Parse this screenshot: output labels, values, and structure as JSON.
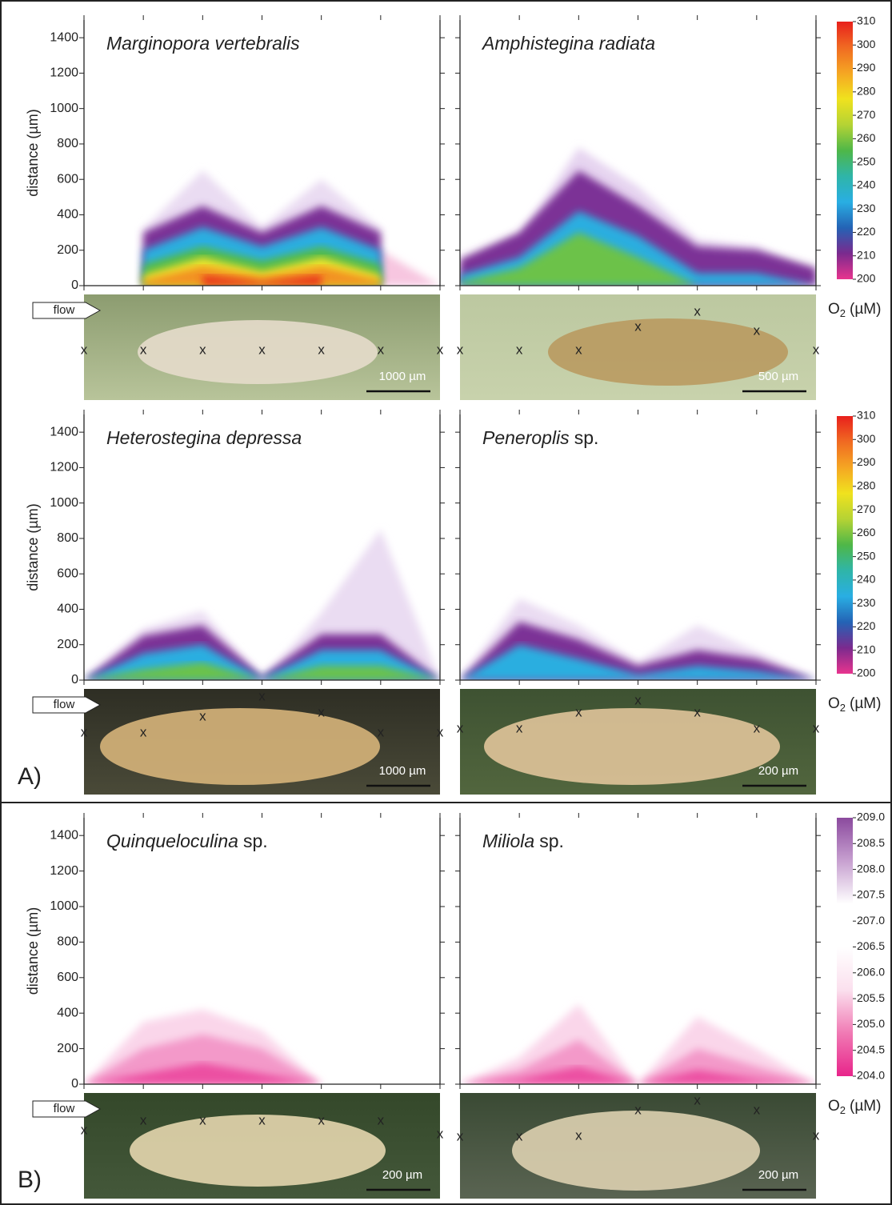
{
  "chart_data": [
    {
      "type": "contour",
      "title": [
        "Marginopora vertebralis"
      ],
      "ylabel": "distance (µm)",
      "ylim": [
        0,
        1500
      ],
      "yticks": [
        0,
        200,
        400,
        600,
        800,
        1000,
        1200,
        1400
      ],
      "tick_labels": true,
      "layers": [
        {
          "color": "#eadcf2",
          "values": [
            null,
            320,
            650,
            330,
            600,
            320,
            null
          ]
        },
        {
          "color": "#f7c6e0",
          "values": [
            null,
            null,
            null,
            null,
            null,
            200,
            0
          ]
        },
        {
          "color": "#7b3396",
          "values": [
            null,
            300,
            450,
            300,
            450,
            300,
            null
          ]
        },
        {
          "color": "#2aaee0",
          "values": [
            null,
            200,
            330,
            220,
            330,
            200,
            null
          ]
        },
        {
          "color": "#55bb4a",
          "values": [
            null,
            120,
            220,
            140,
            220,
            120,
            null
          ]
        },
        {
          "color": "#eee22a",
          "values": [
            null,
            60,
            160,
            80,
            160,
            60,
            null
          ]
        },
        {
          "color": "#f39223",
          "values": [
            null,
            30,
            110,
            50,
            110,
            30,
            null
          ]
        },
        {
          "color": "#e8301f",
          "values": [
            null,
            null,
            60,
            20,
            60,
            null,
            null
          ]
        }
      ],
      "markers": {
        "label": "x",
        "colors": [
          "#222",
          "#222",
          "#e53a2a",
          "#222",
          "#e53a2a",
          "#222",
          "#222"
        ]
      },
      "scale_bar": "1000 µm"
    },
    {
      "type": "contour",
      "title": [
        "Amphistegina radiata"
      ],
      "ylim": [
        0,
        1500
      ],
      "yticks": [
        0,
        200,
        400,
        600,
        800,
        1000,
        1200,
        1400
      ],
      "tick_labels": false,
      "layers": [
        {
          "color": "#e6d4f0",
          "values": [
            100,
            280,
            780,
            560,
            260,
            220,
            60
          ]
        },
        {
          "color": "#7b3396",
          "values": [
            150,
            300,
            650,
            450,
            220,
            200,
            100
          ]
        },
        {
          "color": "#2aaee0",
          "values": [
            60,
            160,
            420,
            280,
            70,
            70,
            0
          ]
        },
        {
          "color": "#6cc24a",
          "values": [
            20,
            100,
            300,
            160,
            0,
            null,
            null
          ]
        }
      ],
      "markers": {
        "label": "x",
        "colors": [
          "#222",
          "#222",
          "#e53a2a",
          "#e53a2a",
          "#222",
          "#222",
          "#222"
        ]
      },
      "scale_bar": "500 µm"
    },
    {
      "type": "contour",
      "title": [
        "Heterostegina depressa"
      ],
      "ylabel": "distance (µm)",
      "ylim": [
        0,
        1500
      ],
      "yticks": [
        0,
        200,
        400,
        600,
        800,
        1000,
        1200,
        1400
      ],
      "tick_labels": true,
      "layers": [
        {
          "color": "#eadcf2",
          "values": [
            0,
            290,
            390,
            0,
            380,
            850,
            0
          ]
        },
        {
          "color": "#7b3396",
          "values": [
            0,
            250,
            310,
            20,
            260,
            260,
            0
          ]
        },
        {
          "color": "#2aaee0",
          "values": [
            0,
            150,
            200,
            10,
            170,
            170,
            0
          ]
        },
        {
          "color": "#6cc24a",
          "values": [
            0,
            60,
            100,
            0,
            80,
            80,
            0
          ]
        }
      ],
      "markers": {
        "label": "x",
        "colors": [
          "#222",
          "#e53a2a",
          "#e53a2a",
          "#222",
          "#222",
          "#222",
          "#222"
        ]
      },
      "scale_bar": "1000 µm"
    },
    {
      "type": "contour",
      "title": [
        "Peneroplis",
        "sp."
      ],
      "ylim": [
        0,
        1500
      ],
      "yticks": [
        0,
        200,
        400,
        600,
        800,
        1000,
        1200,
        1400
      ],
      "tick_labels": false,
      "layers": [
        {
          "color": "#eadcf2",
          "values": [
            0,
            460,
            310,
            100,
            310,
            160,
            0
          ]
        },
        {
          "color": "#7b3396",
          "values": [
            0,
            330,
            230,
            80,
            170,
            120,
            0
          ]
        },
        {
          "color": "#2aaee0",
          "values": [
            0,
            200,
            120,
            30,
            80,
            50,
            0
          ]
        }
      ],
      "markers": {
        "label": "x",
        "colors": [
          "#222",
          "#222",
          "#e53a2a",
          "#222",
          "#e53a2a",
          "#222",
          "#222"
        ]
      },
      "scale_bar": "200 µm"
    },
    {
      "type": "contour",
      "title": [
        "Quinqueloculina",
        "sp."
      ],
      "ylabel": "distance (µm)",
      "ylim": [
        0,
        1500
      ],
      "yticks": [
        0,
        200,
        400,
        600,
        800,
        1000,
        1200,
        1400
      ],
      "tick_labels": true,
      "layers": [
        {
          "color": "#fad6ea",
          "values": [
            0,
            350,
            420,
            300,
            0,
            null,
            null
          ]
        },
        {
          "color": "#f399c9",
          "values": [
            0,
            200,
            280,
            200,
            0,
            null,
            null
          ]
        },
        {
          "color": "#ec4fa2",
          "values": [
            0,
            60,
            120,
            60,
            0,
            null,
            null
          ]
        }
      ],
      "markers": {
        "label": "x",
        "colors": [
          "#222",
          "#e53a2a",
          "#222",
          "#e53a2a",
          "#222",
          "#222",
          "#222"
        ]
      },
      "scale_bar": "200 µm"
    },
    {
      "type": "contour",
      "title": [
        "Miliola",
        "sp."
      ],
      "ylim": [
        0,
        1500
      ],
      "yticks": [
        0,
        200,
        400,
        600,
        800,
        1000,
        1200,
        1400
      ],
      "tick_labels": false,
      "layers": [
        {
          "color": "#fad6ea",
          "values": [
            0,
            150,
            450,
            0,
            380,
            200,
            0
          ]
        },
        {
          "color": "#f399c9",
          "values": [
            0,
            80,
            250,
            0,
            200,
            100,
            0
          ]
        },
        {
          "color": "#ec4fa2",
          "values": [
            0,
            30,
            100,
            0,
            80,
            30,
            0
          ]
        }
      ],
      "markers": {
        "label": "x",
        "colors": [
          "#222",
          "#e53a2a",
          "#222",
          "#e53a2a",
          "#222",
          "#222",
          "#222"
        ]
      },
      "scale_bar": "200 µm"
    }
  ],
  "colorbars": [
    {
      "ticks": [
        310,
        300,
        290,
        280,
        270,
        260,
        250,
        240,
        230,
        220,
        210,
        200
      ],
      "colors": [
        "#e8201c",
        "#f06a22",
        "#f5a623",
        "#f0e21e",
        "#b5d334",
        "#4fb748",
        "#2fb5a8",
        "#29aee3",
        "#2463b5",
        "#7b2a8e",
        "#e8348e"
      ],
      "label": [
        "O",
        "2",
        "(µM)"
      ]
    },
    {
      "ticks": [
        310,
        300,
        290,
        280,
        270,
        260,
        250,
        240,
        230,
        220,
        210,
        200
      ],
      "colors": [
        "#e8201c",
        "#f06a22",
        "#f5a623",
        "#f0e21e",
        "#b5d334",
        "#4fb748",
        "#2fb5a8",
        "#29aee3",
        "#2463b5",
        "#7b2a8e",
        "#e8348e"
      ],
      "label": [
        "O",
        "2",
        "(µM)"
      ]
    },
    {
      "ticks": [
        {
          "value": 209,
          "label": "209.0"
        },
        208.5,
        {
          "value": 208,
          "label": "208.0"
        },
        207.5,
        {
          "value": 207,
          "label": "207.0"
        },
        206.5,
        {
          "value": 206,
          "label": "206.0"
        },
        205.5,
        {
          "value": 205,
          "label": "205.0"
        },
        204.5,
        {
          "value": 204,
          "label": "204.0"
        }
      ],
      "colors": [
        "#8b4a9e",
        "#c7a0d0",
        "#ffffff",
        "#ffffff",
        "#fbe0ee",
        "#f07ab4",
        "#e8248a"
      ],
      "label": [
        "O",
        "2",
        "(µM)"
      ]
    }
  ],
  "labels": {
    "flow": "flow",
    "panel_a": "A)",
    "panel_b": "B)"
  }
}
